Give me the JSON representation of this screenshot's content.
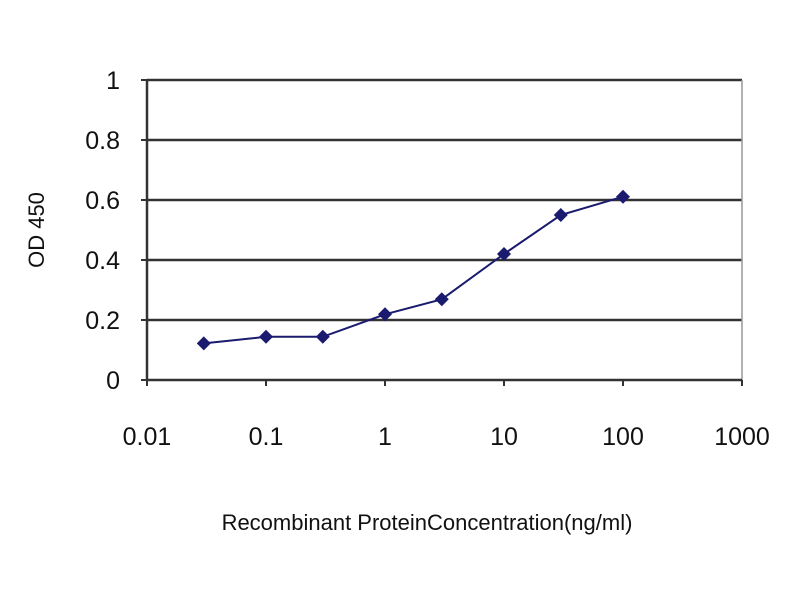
{
  "chart_data": {
    "type": "line",
    "title": "",
    "xlabel": "Recombinant ProteinConcentration(ng/ml)",
    "ylabel": "OD 450",
    "x_scale": "log",
    "xlim": [
      0.01,
      1000
    ],
    "ylim": [
      0,
      1
    ],
    "x_ticks": [
      "0.01",
      "0.1",
      "1",
      "10",
      "100",
      "1000"
    ],
    "y_ticks": [
      "0",
      "0.2",
      "0.4",
      "0.6",
      "0.8",
      "1"
    ],
    "grid": "horizontal",
    "legend": "none",
    "series": [
      {
        "color": "#1a1a6e",
        "marker": "diamond",
        "x": [
          0.03,
          0.1,
          0.3,
          1,
          3,
          10,
          30,
          100
        ],
        "y": [
          0.122,
          0.144,
          0.144,
          0.219,
          0.269,
          0.42,
          0.55,
          0.611
        ]
      }
    ]
  }
}
